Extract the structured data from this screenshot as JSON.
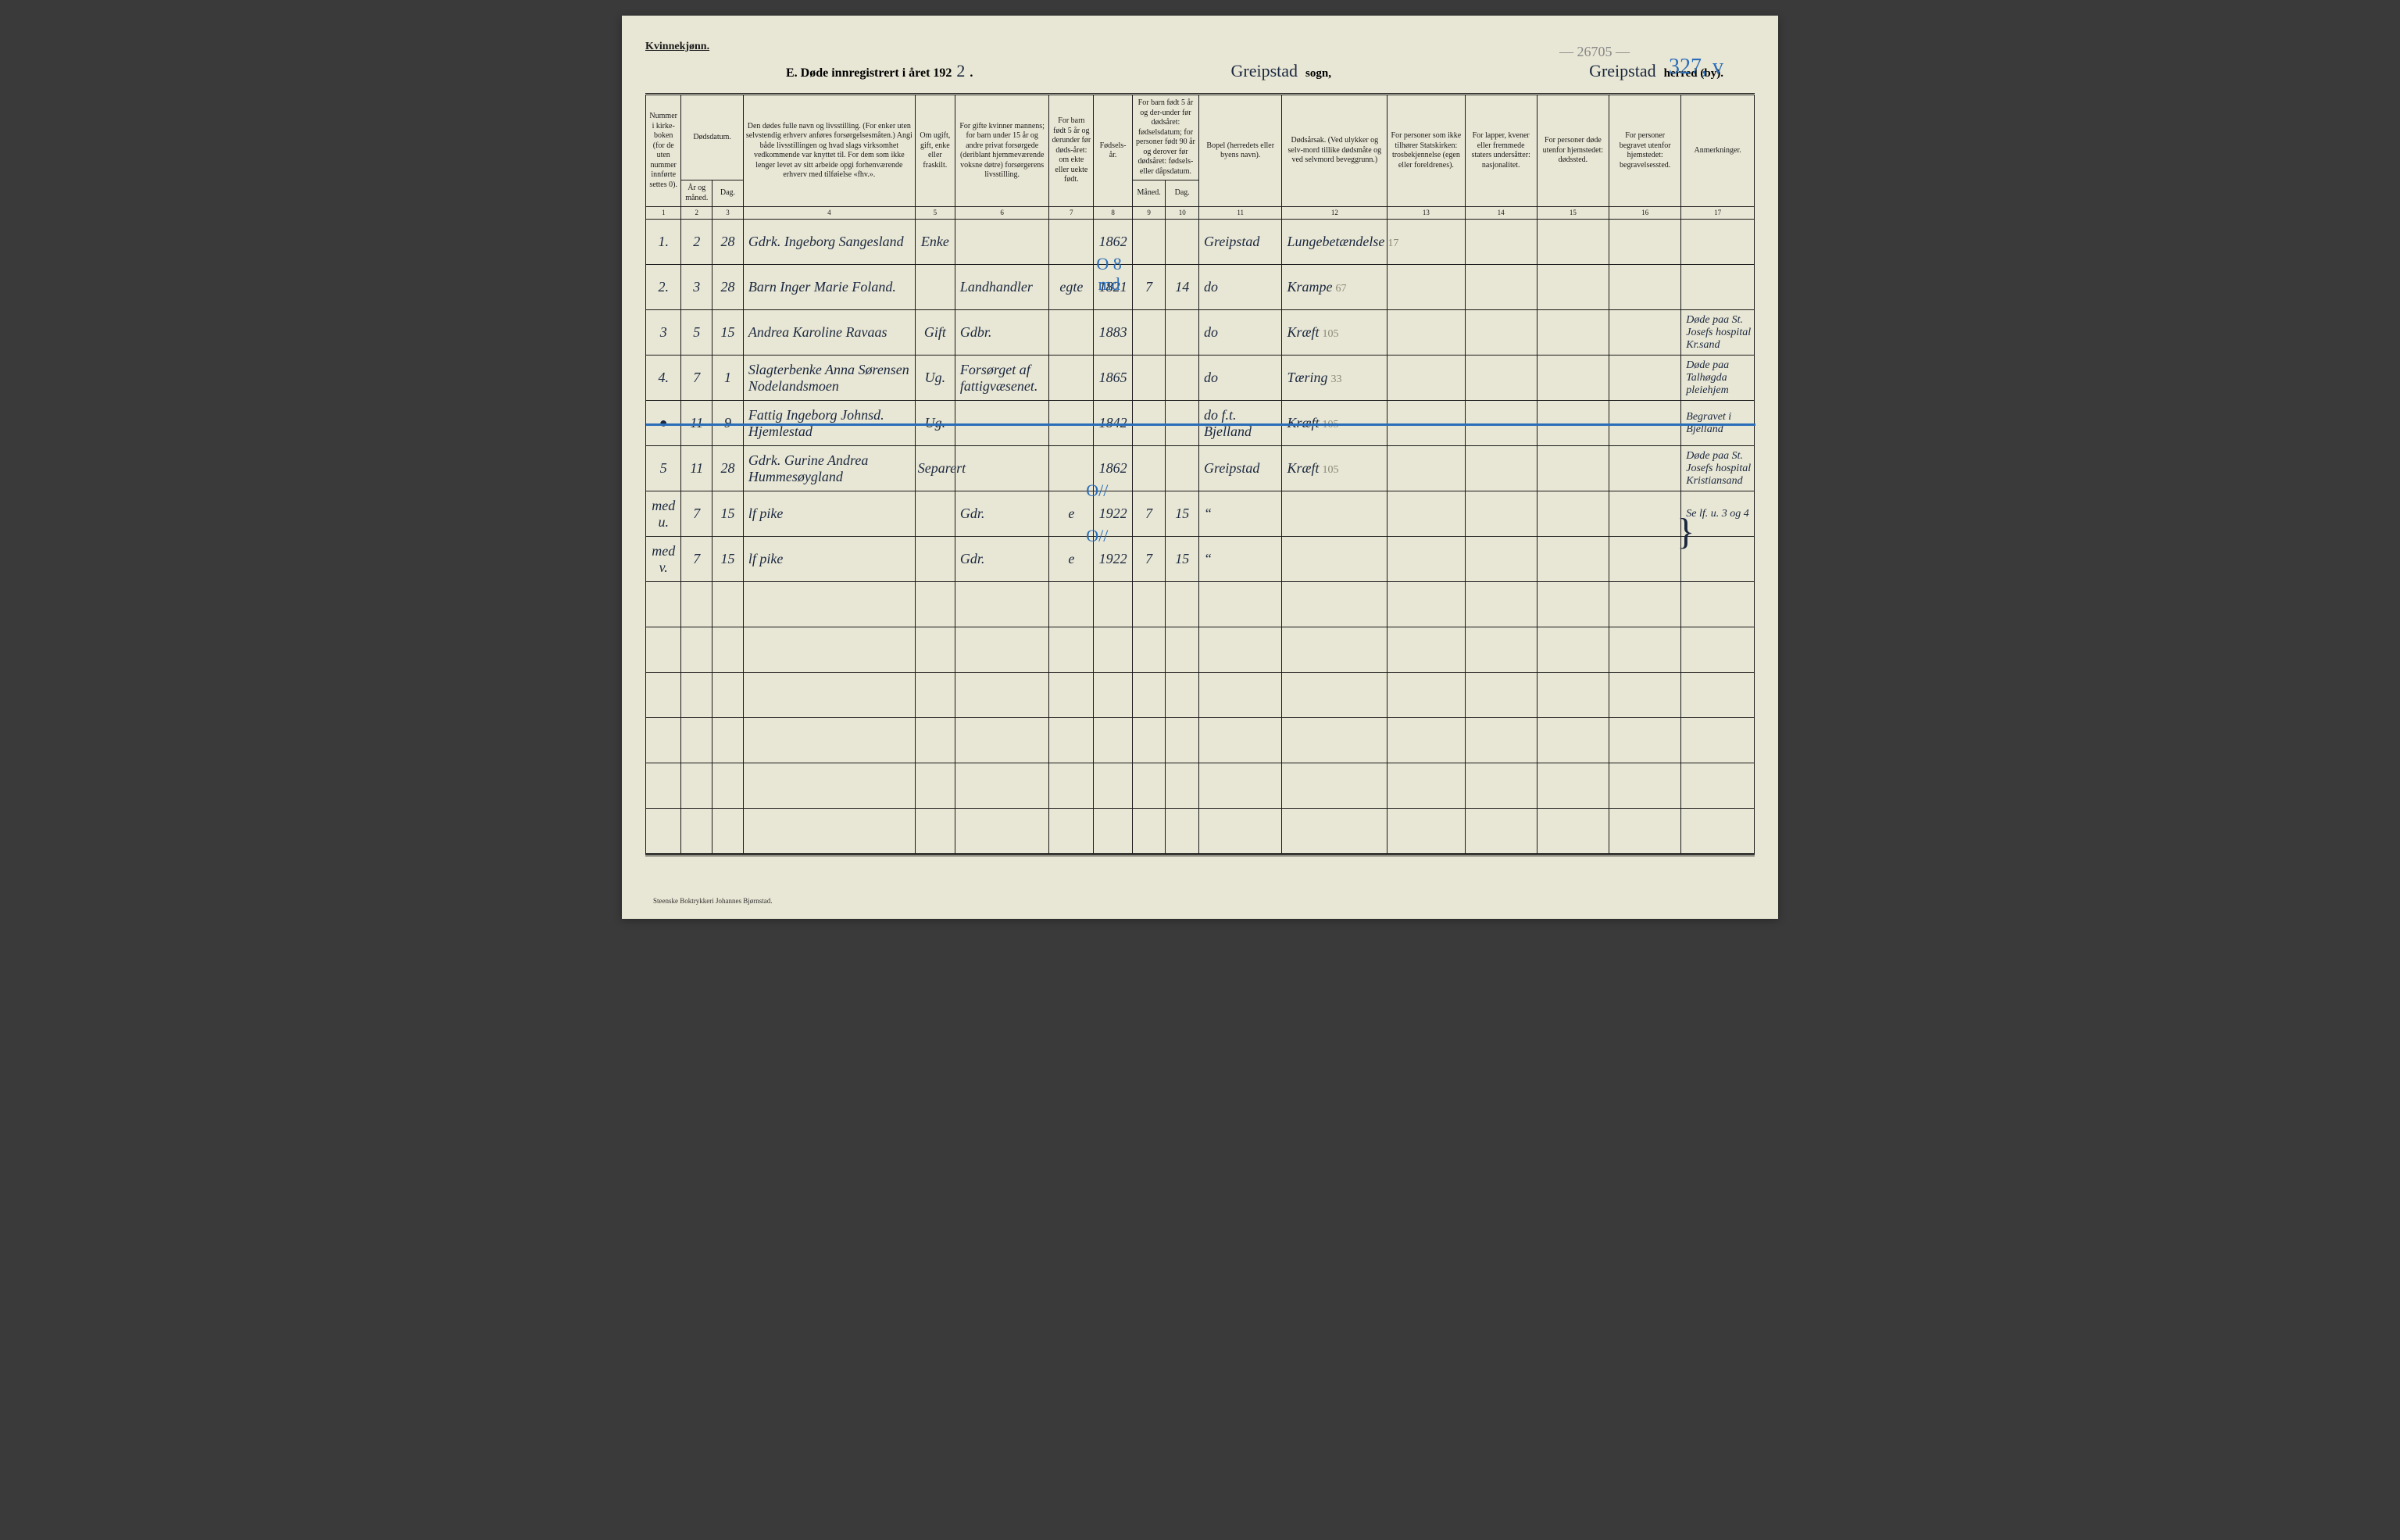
{
  "top_link": "Kvinnekjønn.",
  "header": {
    "title_prefix": "E.  Døde innregistrert i året 192",
    "year_fill": "2",
    "period": ".",
    "sogn_fill": "Greipstad",
    "sogn_label": "sogn,",
    "herred_fill": "Greipstad",
    "herred_label": "herred (by).",
    "penciled_top": "— 26705 —",
    "blue_top": "327, v"
  },
  "columns": {
    "c1": "Nummer i kirke-boken (for de uten nummer innførte settes 0).",
    "c2_top": "Dødsdatum.",
    "c2a": "År og måned.",
    "c2b": "Dag.",
    "c4": "Den dødes fulle navn og livsstilling. (For enker uten selvstendig erhverv anføres forsørgelsesmåten.) Angi både livsstillingen og hvad slags virksomhet vedkommende var knyttet til. For dem som ikke lenger levet av sitt arbeide opgi forhenværende erhverv med tilføielse «fhv.».",
    "c5": "Om ugift, gift, enke eller fraskilt.",
    "c6": "For gifte kvinner mannens; for barn under 15 år og andre privat forsørgede (deriblant hjemmeværende voksne døtre) forsørgerens livsstilling.",
    "c7": "For barn født 5 år og derunder før døds-året: om ekte eller uekte født.",
    "c8": "Fødsels-år.",
    "c9_top": "For barn født 5 år og der-under før dødsåret: fødselsdatum; for personer født 90 år og derover før dødsåret: fødsels- eller dåpsdatum.",
    "c9a": "Måned.",
    "c9b": "Dag.",
    "c11": "Bopel (herredets eller byens navn).",
    "c12": "Dødsårsak. (Ved ulykker og selv-mord tillike dødsmåte og ved selvmord beveggrunn.)",
    "c13": "For personer som ikke tilhører Statskirken: trosbekjennelse (egen eller foreldrenes).",
    "c14": "For lapper, kvener eller fremmede staters undersåtter: nasjonalitet.",
    "c15": "For personer døde utenfor hjemstedet: dødssted.",
    "c16": "For personer begravet utenfor hjemstedet: begravelsessted.",
    "c17": "Anmerkninger."
  },
  "colnums": [
    "1",
    "2",
    "3",
    "4",
    "5",
    "6",
    "7",
    "8",
    "9",
    "10",
    "11",
    "12",
    "13",
    "14",
    "15",
    "16",
    "17"
  ],
  "rows": [
    {
      "n": "1.",
      "aar": "2",
      "dag": "28",
      "navn": "Gdrk. Ingeborg Sangesland",
      "stand": "Enke",
      "forsorger": "",
      "ekte": "",
      "faar": "1862",
      "md": "",
      "ddag": "",
      "bopel": "Greipstad",
      "aarsak": "Lungebetændelse",
      "pencil": "17",
      "c13": "",
      "c14": "",
      "c15": "",
      "c16": "",
      "anm": "",
      "blue_over": ""
    },
    {
      "n": "2.",
      "aar": "3",
      "dag": "28",
      "navn": "Barn Inger Marie Foland.",
      "stand": "",
      "forsorger": "Landhandler",
      "ekte": "egte",
      "faar": "1821",
      "md": "7",
      "ddag": "14",
      "bopel": "do",
      "aarsak": "Krampe",
      "pencil": "67",
      "c13": "",
      "c14": "",
      "c15": "",
      "c16": "",
      "anm": "",
      "blue_over": "O 8 md"
    },
    {
      "n": "3",
      "aar": "5",
      "dag": "15",
      "navn": "Andrea Karoline Ravaas",
      "stand": "Gift",
      "forsorger": "Gdbr.",
      "ekte": "",
      "faar": "1883",
      "md": "",
      "ddag": "",
      "bopel": "do",
      "aarsak": "Kræft",
      "pencil": "105",
      "c13": "",
      "c14": "",
      "c15": "",
      "c16": "",
      "anm": "Døde paa St. Josefs hospital Kr.sand",
      "blue_over": ""
    },
    {
      "n": "4.",
      "aar": "7",
      "dag": "1",
      "navn": "Slagterbenke Anna Sørensen Nodelandsmoen",
      "stand": "Ug.",
      "forsorger": "Forsørget af fattigvæsenet.",
      "ekte": "",
      "faar": "1865",
      "md": "",
      "ddag": "",
      "bopel": "do",
      "aarsak": "Tæring",
      "pencil": "33",
      "c13": "",
      "c14": "",
      "c15": "",
      "c16": "",
      "anm": "Døde paa Talhøgda pleiehjem",
      "blue_over": ""
    },
    {
      "n": "●",
      "aar": "11",
      "dag": "9",
      "navn": "Fattig Ingeborg Johnsd. Hjemlestad",
      "stand": "Ug.",
      "forsorger": "",
      "ekte": "",
      "faar": "1842",
      "md": "",
      "ddag": "",
      "bopel": "do  f.t. Bjelland",
      "aarsak": "Kræft",
      "pencil": "105",
      "c13": "",
      "c14": "",
      "c15": "",
      "c16": "",
      "anm": "Begravet i Bjelland",
      "blue_over": "",
      "struck": true
    },
    {
      "n": "5",
      "aar": "11",
      "dag": "28",
      "navn": "Gdrk. Gurine Andrea Hummesøygland",
      "stand": "Separert",
      "forsorger": "",
      "ekte": "",
      "faar": "1862",
      "md": "",
      "ddag": "",
      "bopel": "Greipstad",
      "aarsak": "Kræft",
      "pencil": "105",
      "c13": "",
      "c14": "",
      "c15": "",
      "c16": "",
      "anm": "Døde paa St. Josefs hospital Kristiansand",
      "blue_over": ""
    },
    {
      "n": "med u.",
      "aar": "7",
      "dag": "15",
      "navn": "lf pike",
      "stand": "",
      "forsorger": "Gdr.",
      "ekte": "e",
      "faar": "1922",
      "md": "7",
      "ddag": "15",
      "bopel": "“",
      "aarsak": "",
      "pencil": "",
      "c13": "",
      "c14": "",
      "c15": "",
      "c16": "",
      "anm": "Se lf. u. 3 og 4",
      "blue_over": "O//",
      "brace": true
    },
    {
      "n": "med v.",
      "aar": "7",
      "dag": "15",
      "navn": "lf pike",
      "stand": "",
      "forsorger": "Gdr.",
      "ekte": "e",
      "faar": "1922",
      "md": "7",
      "ddag": "15",
      "bopel": "“",
      "aarsak": "",
      "pencil": "",
      "c13": "",
      "c14": "",
      "c15": "",
      "c16": "",
      "anm": "",
      "blue_over": "O//",
      "brace": true
    }
  ],
  "empty_rows": 6,
  "footer": "Steenske Boktrykkeri Johannes Bjørnstad.",
  "colors": {
    "paper": "#e8e6d4",
    "ink": "#1a2840",
    "blue": "#2a6db8",
    "pencil": "#8a8a7a",
    "rule": "#1a1a1a"
  },
  "colwidths_pct": [
    3.2,
    2.8,
    2.8,
    15.5,
    3.6,
    8.5,
    4.0,
    3.5,
    3.0,
    3.0,
    7.5,
    9.5,
    7.0,
    6.5,
    6.5,
    6.5,
    6.6
  ]
}
